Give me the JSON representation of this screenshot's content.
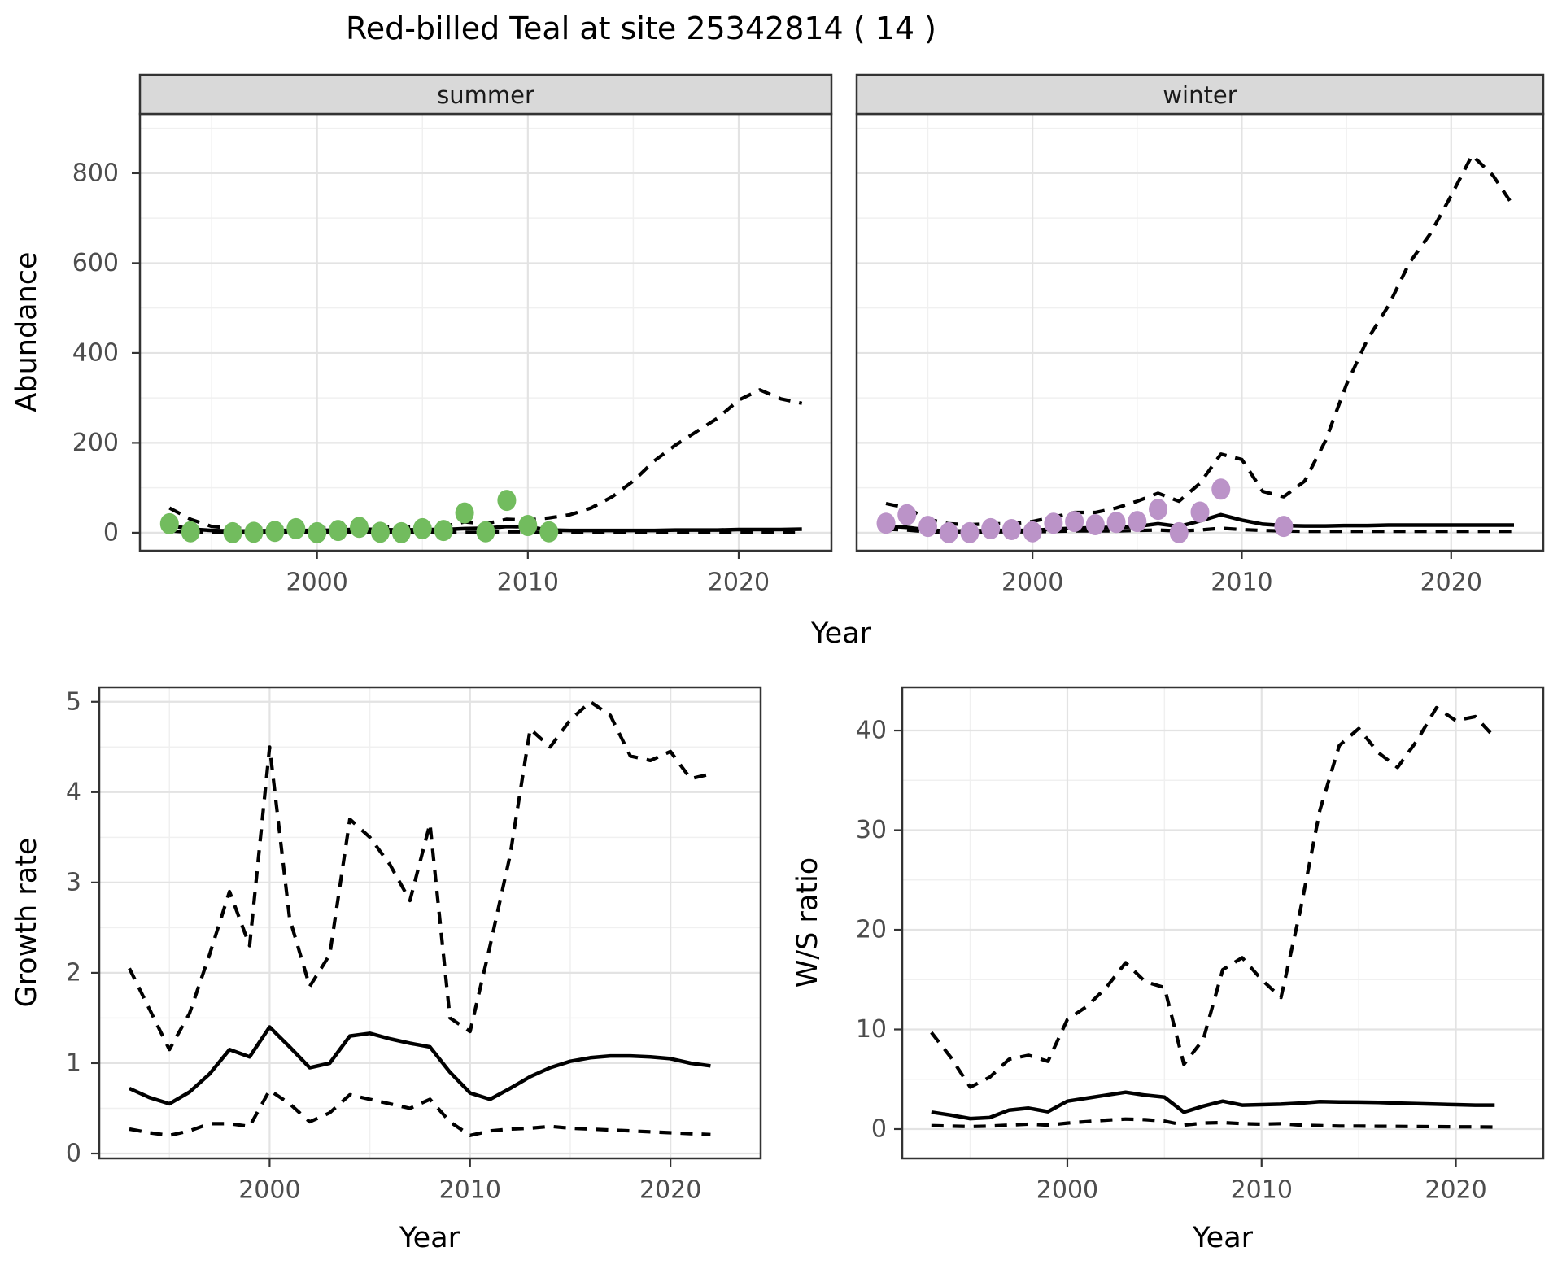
{
  "title": "Red-billed Teal at site 25342814 ( 14 )",
  "colors": {
    "summer_point": "#72BC5E",
    "winter_point": "#BB93C8",
    "line": "#000000",
    "strip_bg": "#D9D9D9",
    "panel_border": "#333333",
    "grid_major": "#E3E3E3",
    "grid_minor": "#F0F0F0",
    "tick_text": "#4D4D4D",
    "background": "#FFFFFF"
  },
  "chart_data": [
    {
      "type": "line",
      "facet_label": "summer",
      "xlabel": "Year",
      "ylabel": "Abundance",
      "xlim": [
        1991.6,
        2024.4
      ],
      "ylim": [
        -40,
        932
      ],
      "x_ticks": [
        2000,
        2010,
        2020
      ],
      "x_minor_ticks": [
        1995,
        2005,
        2015
      ],
      "y_ticks": [
        0,
        200,
        400,
        600,
        800
      ],
      "y_minor_ticks": [
        100,
        300,
        500,
        700,
        900
      ],
      "grid": true,
      "legend": "none",
      "series": [
        {
          "name": "model_fit",
          "style": "solid_line",
          "color": "#000000",
          "x": [
            1993,
            1994,
            1995,
            1996,
            1997,
            1998,
            1999,
            2000,
            2001,
            2002,
            2003,
            2004,
            2005,
            2006,
            2007,
            2008,
            2009,
            2010,
            2011,
            2012,
            2013,
            2014,
            2015,
            2016,
            2017,
            2018,
            2019,
            2020,
            2021,
            2022,
            2023
          ],
          "y": [
            17,
            8,
            5,
            4,
            4,
            5,
            5,
            5,
            6,
            8,
            7,
            6,
            7,
            7,
            9,
            10,
            14,
            13,
            6,
            5,
            5,
            5,
            5,
            5,
            6,
            6,
            6,
            7,
            7,
            7,
            8
          ]
        },
        {
          "name": "upper_ci",
          "style": "dashed_line",
          "color": "#000000",
          "x": [
            1993,
            1994,
            1995,
            1996,
            1997,
            1998,
            1999,
            2000,
            2001,
            2002,
            2003,
            2004,
            2005,
            2006,
            2007,
            2008,
            2009,
            2010,
            2011,
            2012,
            2013,
            2014,
            2015,
            2016,
            2017,
            2018,
            2019,
            2020,
            2021,
            2022,
            2023
          ],
          "y": [
            55,
            30,
            14,
            10,
            9,
            10,
            11,
            10,
            12,
            15,
            13,
            12,
            13,
            14,
            24,
            20,
            30,
            28,
            33,
            40,
            55,
            80,
            115,
            160,
            195,
            225,
            255,
            295,
            318,
            298,
            288
          ]
        },
        {
          "name": "lower_ci",
          "style": "dashed_line",
          "color": "#000000",
          "x": [
            1993,
            1994,
            1995,
            1996,
            1997,
            1998,
            1999,
            2000,
            2001,
            2002,
            2003,
            2004,
            2005,
            2006,
            2007,
            2008,
            2009,
            2010,
            2011,
            2012,
            2013,
            2014,
            2015,
            2016,
            2017,
            2018,
            2019,
            2020,
            2021,
            2022,
            2023
          ],
          "y": [
            4,
            1,
            0,
            0,
            0,
            0,
            0,
            0,
            0,
            1,
            0,
            0,
            0,
            0,
            1,
            1,
            2,
            2,
            0,
            0,
            0,
            0,
            0,
            0,
            0,
            0,
            0,
            0,
            0,
            0,
            0
          ]
        },
        {
          "name": "observed_counts",
          "style": "points",
          "color": "#72BC5E",
          "x": [
            1993,
            1994,
            1996,
            1997,
            1998,
            1999,
            2000,
            2001,
            2002,
            2003,
            2004,
            2005,
            2006,
            2007,
            2008,
            2009,
            2010,
            2011
          ],
          "y": [
            20,
            2,
            0,
            1,
            3,
            9,
            0,
            5,
            12,
            1,
            0,
            9,
            5,
            44,
            2,
            72,
            16,
            2
          ]
        }
      ]
    },
    {
      "type": "line",
      "facet_label": "winter",
      "xlabel": "Year",
      "ylabel": "",
      "xlim": [
        1991.6,
        2024.4
      ],
      "ylim": [
        -40,
        932
      ],
      "x_ticks": [
        2000,
        2010,
        2020
      ],
      "x_minor_ticks": [
        1995,
        2005,
        2015
      ],
      "y_ticks": [
        0,
        200,
        400,
        600,
        800
      ],
      "y_minor_ticks": [
        100,
        300,
        500,
        700,
        900
      ],
      "grid": true,
      "legend": "none",
      "series": [
        {
          "name": "model_fit",
          "style": "solid_line",
          "color": "#000000",
          "x": [
            1993,
            1994,
            1995,
            1996,
            1997,
            1998,
            1999,
            2000,
            2001,
            2002,
            2003,
            2004,
            2005,
            2006,
            2007,
            2008,
            2009,
            2010,
            2011,
            2012,
            2013,
            2014,
            2015,
            2016,
            2017,
            2018,
            2019,
            2020,
            2021,
            2022,
            2023
          ],
          "y": [
            15,
            12,
            6,
            4,
            4,
            5,
            5,
            5,
            8,
            10,
            11,
            12,
            14,
            20,
            14,
            26,
            40,
            28,
            19,
            16,
            15,
            15,
            16,
            16,
            17,
            17,
            17,
            17,
            17,
            17,
            17
          ]
        },
        {
          "name": "upper_ci",
          "style": "dashed_line",
          "color": "#000000",
          "x": [
            1993,
            1994,
            1995,
            1996,
            1997,
            1998,
            1999,
            2000,
            2001,
            2002,
            2003,
            2004,
            2005,
            2006,
            2007,
            2008,
            2009,
            2010,
            2011,
            2012,
            2013,
            2014,
            2015,
            2016,
            2017,
            2018,
            2019,
            2020,
            2021,
            2022,
            2023
          ],
          "y": [
            65,
            55,
            30,
            20,
            18,
            20,
            20,
            25,
            35,
            45,
            45,
            55,
            70,
            88,
            70,
            110,
            175,
            163,
            92,
            80,
            115,
            205,
            330,
            430,
            505,
            600,
            665,
            750,
            840,
            795,
            725
          ]
        },
        {
          "name": "lower_ci",
          "style": "dashed_line",
          "color": "#000000",
          "x": [
            1993,
            1994,
            1995,
            1996,
            1997,
            1998,
            1999,
            2000,
            2001,
            2002,
            2003,
            2004,
            2005,
            2006,
            2007,
            2008,
            2009,
            2010,
            2011,
            2012,
            2013,
            2014,
            2015,
            2016,
            2017,
            2018,
            2019,
            2020,
            2021,
            2022,
            2023
          ],
          "y": [
            8,
            6,
            2,
            1,
            1,
            2,
            2,
            2,
            3,
            4,
            4,
            4,
            5,
            6,
            4,
            6,
            10,
            7,
            5,
            4,
            3,
            3,
            3,
            3,
            3,
            3,
            3,
            3,
            3,
            3,
            3
          ]
        },
        {
          "name": "observed_counts",
          "style": "points",
          "color": "#BB93C8",
          "x": [
            1993,
            1994,
            1995,
            1996,
            1997,
            1998,
            1999,
            2000,
            2001,
            2002,
            2003,
            2004,
            2005,
            2006,
            2007,
            2008,
            2009,
            2012
          ],
          "y": [
            21,
            40,
            14,
            0,
            0,
            9,
            7,
            2,
            21,
            25,
            18,
            23,
            25,
            52,
            0,
            46,
            97,
            14
          ]
        }
      ]
    },
    {
      "type": "line",
      "facet_label": "",
      "xlabel": "Year",
      "ylabel": "Growth rate",
      "xlim": [
        1991.5,
        2024.5
      ],
      "ylim": [
        -0.054,
        5.16
      ],
      "x_ticks": [
        2000,
        2010,
        2020
      ],
      "x_minor_ticks": [
        1995,
        2005,
        2015
      ],
      "y_ticks": [
        0,
        1,
        2,
        3,
        4,
        5
      ],
      "y_minor_ticks": [
        0.5,
        1.5,
        2.5,
        3.5,
        4.5
      ],
      "grid": true,
      "legend": "none",
      "series": [
        {
          "name": "model_fit",
          "style": "solid_line",
          "color": "#000000",
          "x": [
            1993,
            1994,
            1995,
            1996,
            1997,
            1998,
            1999,
            2000,
            2001,
            2002,
            2003,
            2004,
            2005,
            2006,
            2007,
            2008,
            2009,
            2010,
            2011,
            2012,
            2013,
            2014,
            2015,
            2016,
            2017,
            2018,
            2019,
            2020,
            2021,
            2022
          ],
          "y": [
            0.72,
            0.62,
            0.55,
            0.68,
            0.88,
            1.15,
            1.07,
            1.4,
            1.18,
            0.95,
            1.0,
            1.3,
            1.33,
            1.27,
            1.22,
            1.18,
            0.9,
            0.67,
            0.6,
            0.72,
            0.85,
            0.95,
            1.02,
            1.06,
            1.08,
            1.08,
            1.07,
            1.05,
            1.0,
            0.97
          ]
        },
        {
          "name": "upper_ci",
          "style": "dashed_line",
          "color": "#000000",
          "x": [
            1993,
            1994,
            1995,
            1996,
            1997,
            1998,
            1999,
            2000,
            2001,
            2002,
            2003,
            2004,
            2005,
            2006,
            2007,
            2008,
            2009,
            2010,
            2011,
            2012,
            2013,
            2014,
            2015,
            2016,
            2017,
            2018,
            2019,
            2020,
            2021,
            2022
          ],
          "y": [
            2.05,
            1.6,
            1.15,
            1.55,
            2.2,
            2.9,
            2.3,
            4.5,
            2.6,
            1.85,
            2.2,
            3.7,
            3.5,
            3.2,
            2.8,
            3.65,
            1.5,
            1.35,
            2.3,
            3.3,
            4.7,
            4.5,
            4.8,
            5.0,
            4.85,
            4.4,
            4.35,
            4.45,
            4.15,
            4.2
          ]
        },
        {
          "name": "lower_ci",
          "style": "dashed_line",
          "color": "#000000",
          "x": [
            1993,
            1994,
            1995,
            1996,
            1997,
            1998,
            1999,
            2000,
            2001,
            2002,
            2003,
            2004,
            2005,
            2006,
            2007,
            2008,
            2009,
            2010,
            2011,
            2012,
            2013,
            2014,
            2015,
            2016,
            2017,
            2018,
            2019,
            2020,
            2021,
            2022
          ],
          "y": [
            0.27,
            0.23,
            0.2,
            0.25,
            0.33,
            0.33,
            0.3,
            0.7,
            0.55,
            0.35,
            0.45,
            0.65,
            0.6,
            0.55,
            0.5,
            0.6,
            0.35,
            0.2,
            0.25,
            0.27,
            0.28,
            0.3,
            0.28,
            0.27,
            0.26,
            0.25,
            0.24,
            0.23,
            0.22,
            0.21
          ]
        }
      ]
    },
    {
      "type": "line",
      "facet_label": "",
      "xlabel": "Year",
      "ylabel": "W/S ratio",
      "xlim": [
        1991.5,
        2024.5
      ],
      "ylim": [
        -2.94,
        44.33
      ],
      "x_ticks": [
        2000,
        2010,
        2020
      ],
      "x_minor_ticks": [
        1995,
        2005,
        2015
      ],
      "y_ticks": [
        0,
        10,
        20,
        30,
        40
      ],
      "y_minor_ticks": [
        5,
        15,
        25,
        35
      ],
      "grid": true,
      "legend": "none",
      "series": [
        {
          "name": "model_fit",
          "style": "solid_line",
          "color": "#000000",
          "x": [
            1993,
            1994,
            1995,
            1996,
            1997,
            1998,
            1999,
            2000,
            2001,
            2002,
            2003,
            2004,
            2005,
            2006,
            2007,
            2008,
            2009,
            2010,
            2011,
            2012,
            2013,
            2014,
            2015,
            2016,
            2017,
            2018,
            2019,
            2020,
            2021,
            2022
          ],
          "y": [
            1.7,
            1.4,
            1.05,
            1.15,
            1.9,
            2.1,
            1.75,
            2.8,
            3.1,
            3.4,
            3.7,
            3.4,
            3.2,
            1.7,
            2.3,
            2.8,
            2.4,
            2.45,
            2.5,
            2.6,
            2.75,
            2.72,
            2.7,
            2.68,
            2.6,
            2.55,
            2.5,
            2.45,
            2.4,
            2.4
          ]
        },
        {
          "name": "upper_ci",
          "style": "dashed_line",
          "color": "#000000",
          "x": [
            1993,
            1994,
            1995,
            1996,
            1997,
            1998,
            1999,
            2000,
            2001,
            2002,
            2003,
            2004,
            2005,
            2006,
            2007,
            2008,
            2009,
            2010,
            2011,
            2012,
            2013,
            2014,
            2015,
            2016,
            2017,
            2018,
            2019,
            2020,
            2021,
            2022
          ],
          "y": [
            9.7,
            7.2,
            4.2,
            5.2,
            7.0,
            7.4,
            6.8,
            11.0,
            12.3,
            14.2,
            16.7,
            14.8,
            14.2,
            6.5,
            9.0,
            16.0,
            17.2,
            15.0,
            13.2,
            22.0,
            32.0,
            38.5,
            40.2,
            37.8,
            36.3,
            39.0,
            42.3,
            41.0,
            41.4,
            39.3
          ]
        },
        {
          "name": "lower_ci",
          "style": "dashed_line",
          "color": "#000000",
          "x": [
            1993,
            1994,
            1995,
            1996,
            1997,
            1998,
            1999,
            2000,
            2001,
            2002,
            2003,
            2004,
            2005,
            2006,
            2007,
            2008,
            2009,
            2010,
            2011,
            2012,
            2013,
            2014,
            2015,
            2016,
            2017,
            2018,
            2019,
            2020,
            2021,
            2022
          ],
          "y": [
            0.35,
            0.3,
            0.25,
            0.3,
            0.4,
            0.5,
            0.4,
            0.6,
            0.75,
            0.9,
            1.0,
            0.95,
            0.8,
            0.4,
            0.6,
            0.65,
            0.55,
            0.5,
            0.55,
            0.4,
            0.35,
            0.3,
            0.3,
            0.28,
            0.27,
            0.25,
            0.24,
            0.23,
            0.22,
            0.2
          ]
        }
      ]
    }
  ]
}
